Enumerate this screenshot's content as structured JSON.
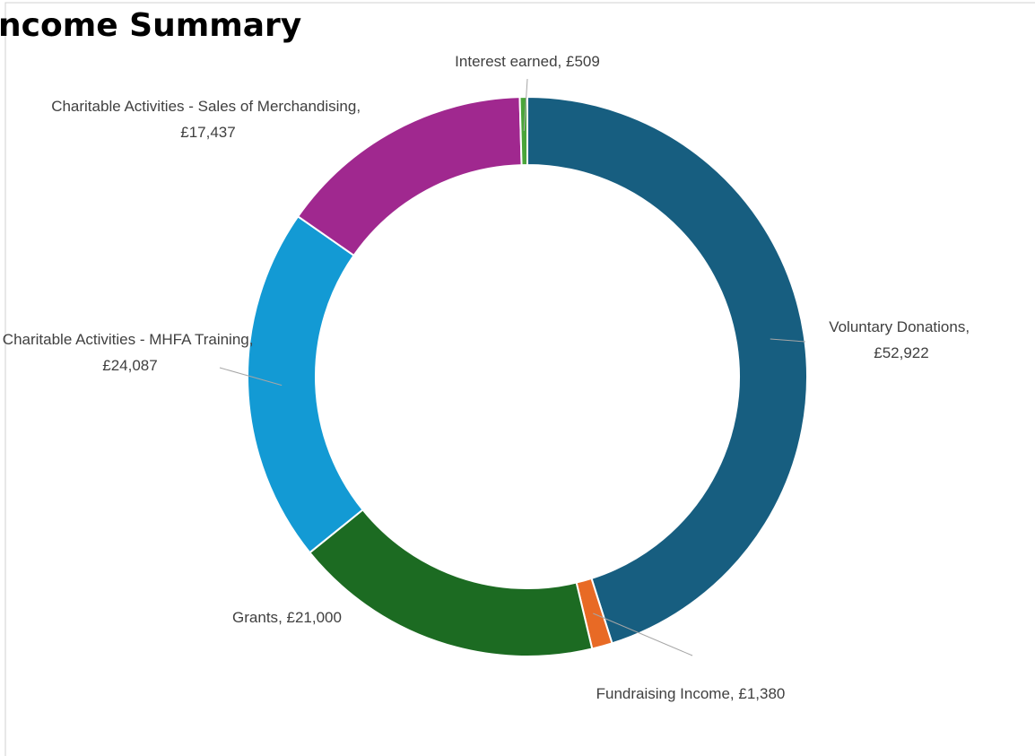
{
  "chart_data": {
    "type": "donut",
    "title": "ncome Summary",
    "categories": [
      "Voluntary Donations",
      "Fundraising Income",
      "Grants",
      "Charitable Activities - MHFA Training",
      "Charitable Activities - Sales of Merchandising",
      "Interest earned"
    ],
    "values": [
      52922,
      1380,
      21000,
      24087,
      17437,
      509
    ],
    "value_labels": [
      "£52,922",
      "£1,380",
      "£21,000",
      "£24,087",
      "£17,437",
      "£509"
    ],
    "colors": [
      "#175e80",
      "#e86a25",
      "#1c6b22",
      "#139ad4",
      "#a0288f",
      "#4aa53a"
    ]
  }
}
